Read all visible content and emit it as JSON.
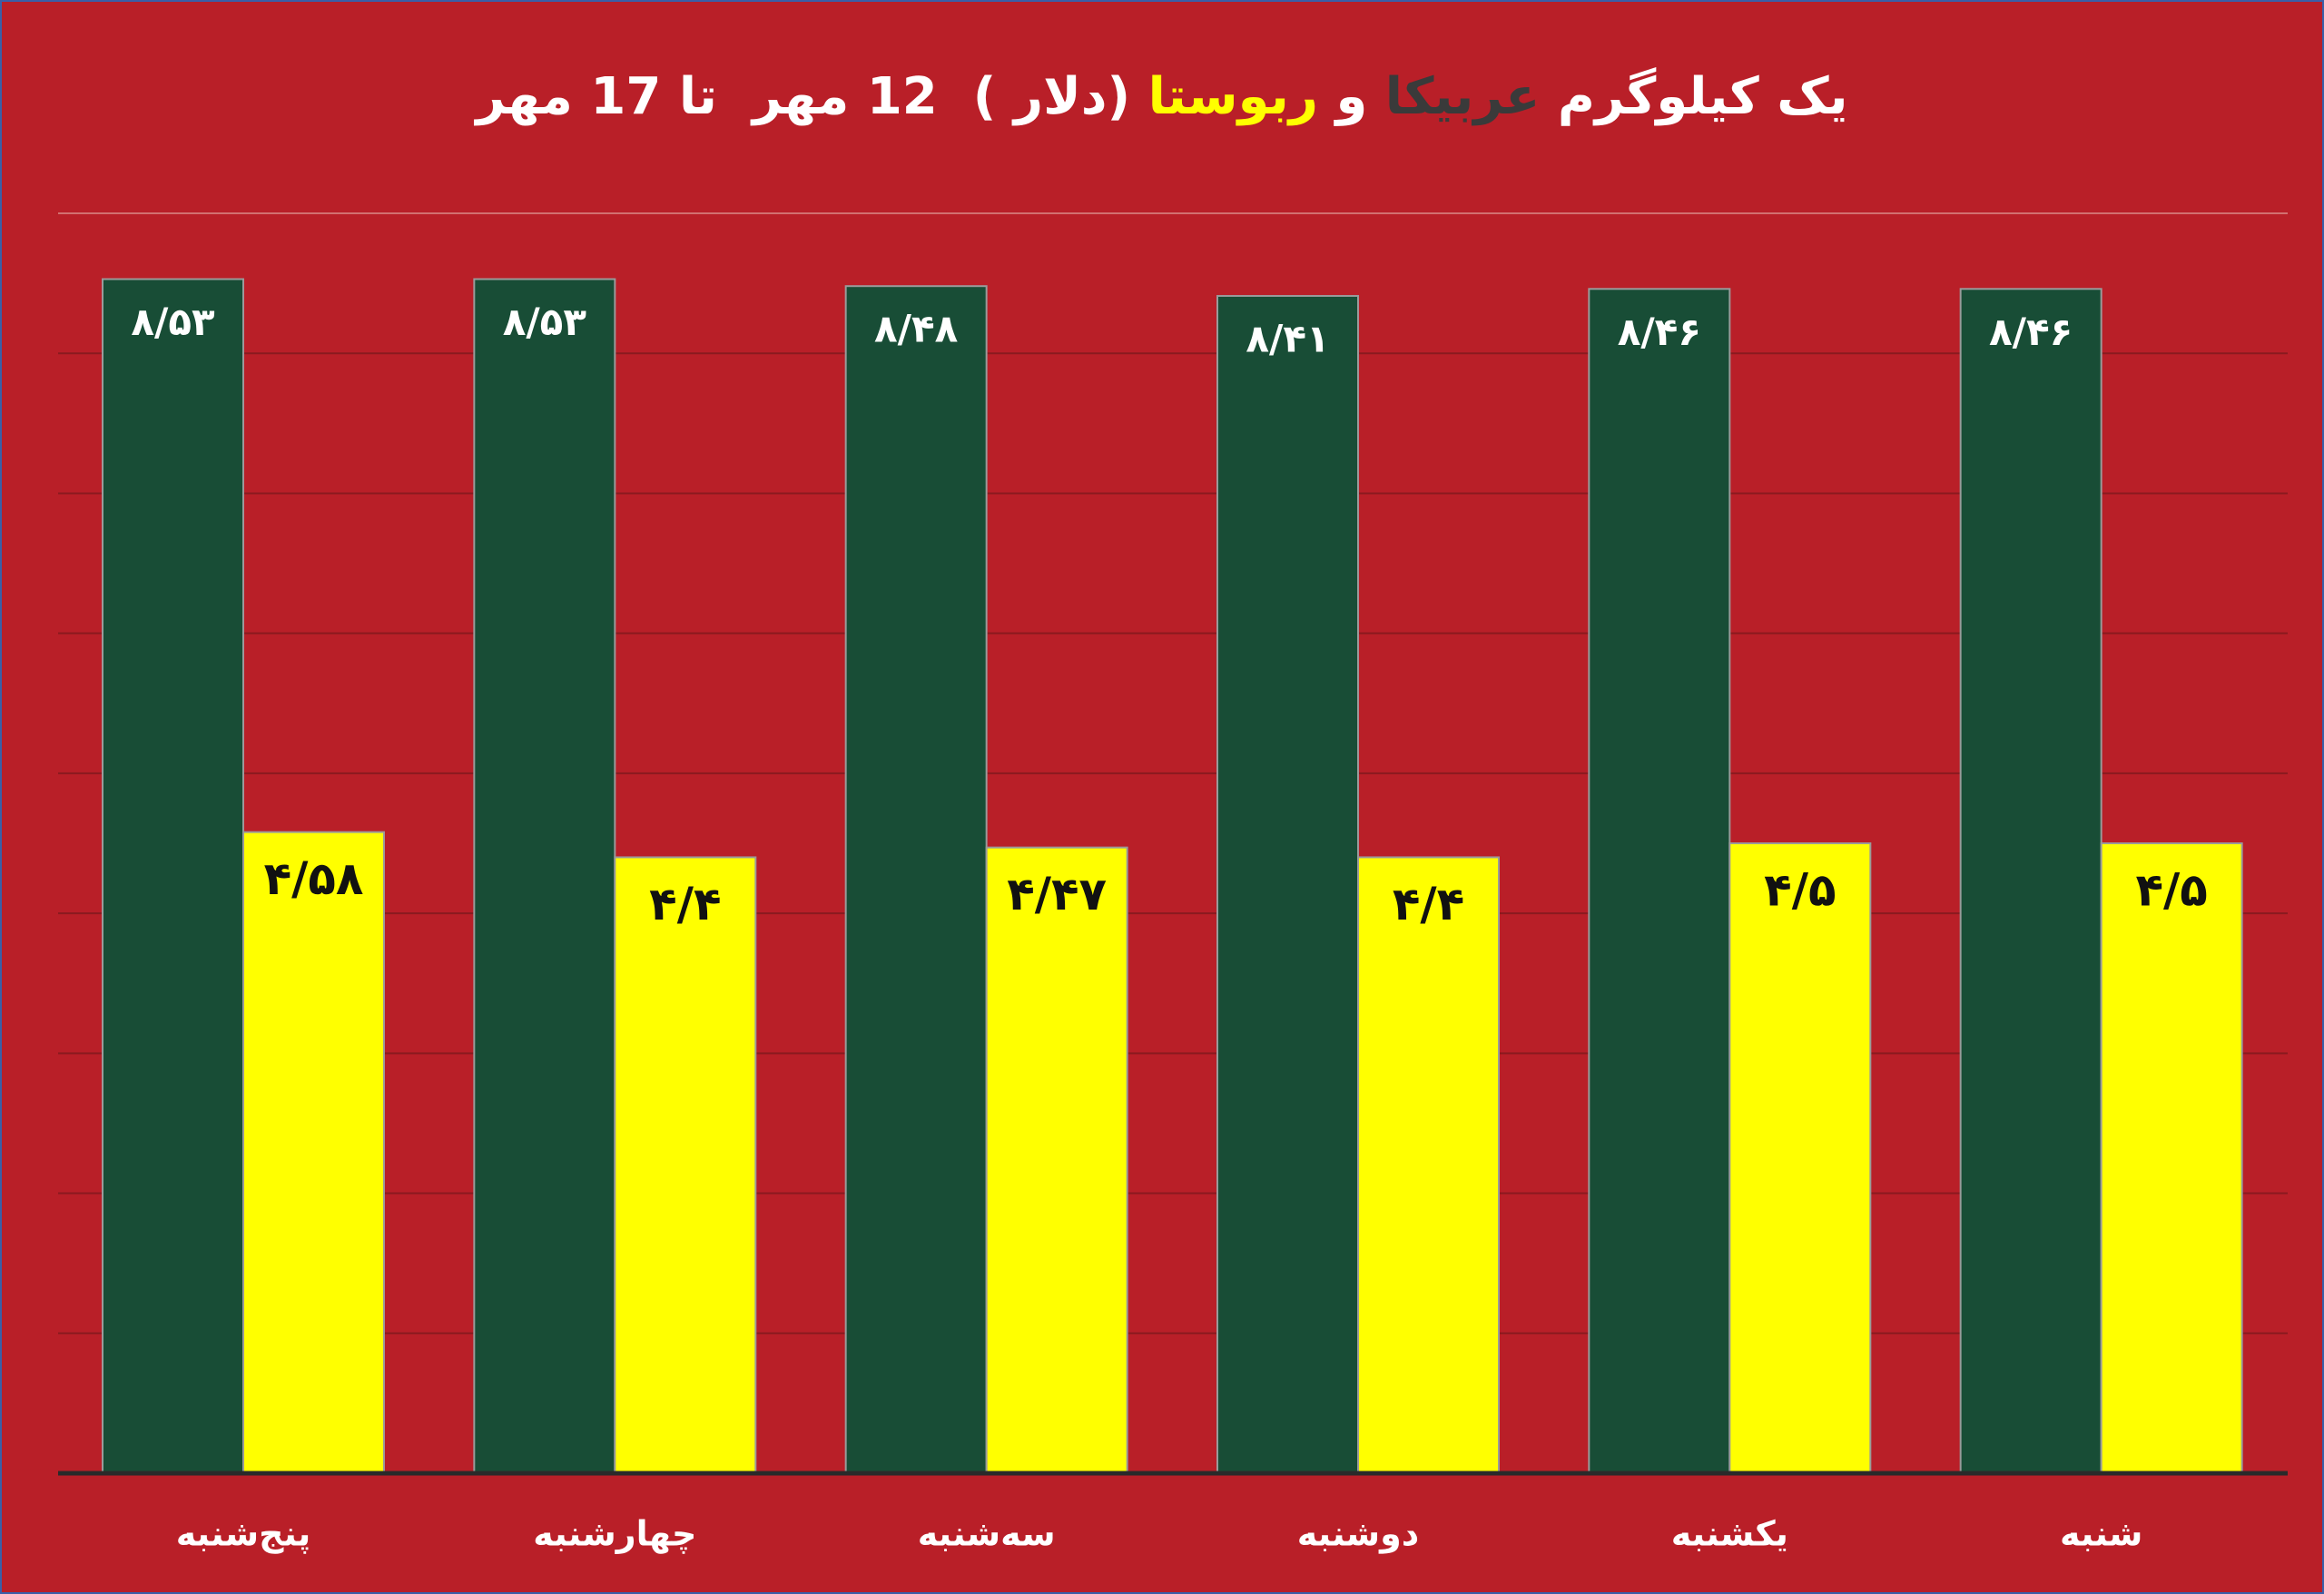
{
  "chart_data": {
    "type": "bar",
    "title": [
      {
        "text": "یک کیلوگرم ",
        "color": "#ffffff"
      },
      {
        "text": "عربیکا",
        "color": "#3a3a3a"
      },
      {
        "text": " و ",
        "color": "#ffffff"
      },
      {
        "text": "ربوستا",
        "color": "#ffff00"
      },
      {
        "text": " (دلار )  12 مهر  تا 17 مهر",
        "color": "#ffffff"
      }
    ],
    "categories": [
      "پنج‌شنبه",
      "چهارشنبه",
      "سه‌شنبه",
      "دوشنبه",
      "یکشنبه",
      "شنبه"
    ],
    "series": [
      {
        "color": "#184d36",
        "label_color": "#ffffff",
        "values": [
          8.53,
          8.53,
          8.48,
          8.41,
          8.46,
          8.46
        ],
        "value_labels": [
          "۸/۵۳",
          "۸/۵۳",
          "۸/۴۸",
          "۸/۴۱",
          "۸/۴۶",
          "۸/۴۶"
        ]
      },
      {
        "color": "#ffff00",
        "label_color": "#111111",
        "values": [
          4.58,
          4.4,
          4.47,
          4.4,
          4.5,
          4.5
        ],
        "value_labels": [
          "۴/۵۸",
          "۴/۴",
          "۴/۴۷",
          "۴/۴",
          "۴/۵",
          "۴/۵"
        ]
      }
    ],
    "ylim": [
      0,
      9
    ],
    "yticks": [
      0,
      1,
      2,
      3,
      4,
      5,
      6,
      7,
      8,
      9
    ],
    "grid": true
  }
}
